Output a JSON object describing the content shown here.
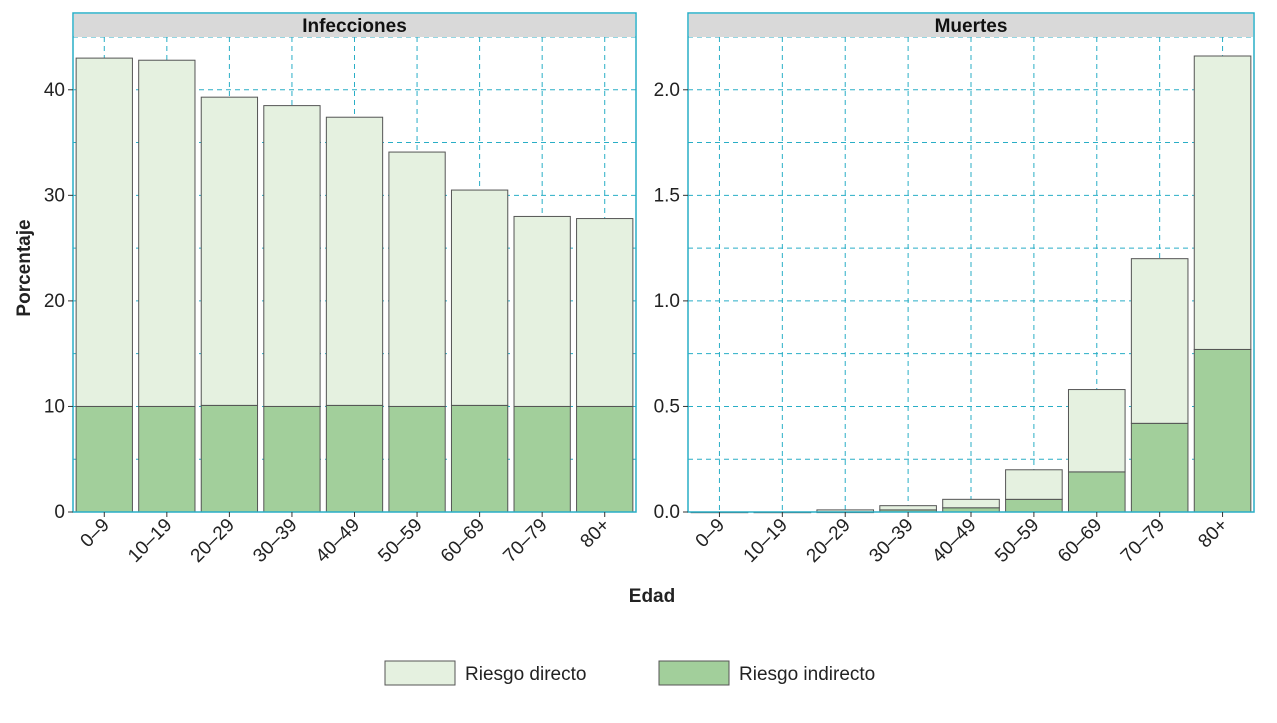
{
  "chart_data": [
    {
      "type": "bar",
      "stacked": true,
      "panel_title": "Infecciones",
      "categories": [
        "0–9",
        "10–19",
        "20–29",
        "30–39",
        "40–49",
        "50–59",
        "60–69",
        "70–79",
        "80+"
      ],
      "series": [
        {
          "name": "Riesgo indirecto",
          "color": "#a2cf9b",
          "values": [
            10.0,
            10.0,
            10.1,
            10.0,
            10.1,
            10.0,
            10.1,
            10.0,
            10.0
          ]
        },
        {
          "name": "Riesgo directo",
          "color": "#e5f1e0",
          "values": [
            33.0,
            32.8,
            29.2,
            28.5,
            27.3,
            24.1,
            20.4,
            18.0,
            17.8
          ]
        }
      ],
      "totals": [
        43.0,
        42.8,
        39.3,
        38.5,
        37.4,
        34.1,
        30.5,
        28.0,
        27.8
      ],
      "yticks": [
        "0",
        "10",
        "20",
        "30",
        "40"
      ],
      "ylim": [
        0,
        45
      ],
      "grid": true
    },
    {
      "type": "bar",
      "stacked": true,
      "panel_title": "Muertes",
      "categories": [
        "0–9",
        "10–19",
        "20–29",
        "30–39",
        "40–49",
        "50–59",
        "60–69",
        "70–79",
        "80+"
      ],
      "series": [
        {
          "name": "Riesgo indirecto",
          "color": "#a2cf9b",
          "values": [
            0.0,
            0.0,
            0.0,
            0.01,
            0.02,
            0.06,
            0.19,
            0.42,
            0.77
          ]
        },
        {
          "name": "Riesgo directo",
          "color": "#e5f1e0",
          "values": [
            0.0,
            0.0,
            0.01,
            0.02,
            0.04,
            0.14,
            0.39,
            0.78,
            1.39
          ]
        }
      ],
      "totals": [
        0.0,
        0.0,
        0.01,
        0.03,
        0.06,
        0.2,
        0.58,
        1.2,
        2.16
      ],
      "yticks": [
        "0.0",
        "0.5",
        "1.0",
        "1.5",
        "2.0"
      ],
      "ylim": [
        0,
        2.25
      ],
      "grid": true
    }
  ],
  "labels": {
    "ylabel": "Porcentaje",
    "xlabel": "Edad",
    "legend_position": "bottom-center"
  },
  "legend": [
    {
      "label": "Riesgo directo",
      "color": "#e5f1e0"
    },
    {
      "label": "Riesgo indirecto",
      "color": "#a2cf9b"
    }
  ],
  "style": {
    "panel_border": "#29aec6",
    "grid": "#29aec6",
    "strip_bg": "#d9d9d9",
    "bar_outline": "#555555"
  }
}
